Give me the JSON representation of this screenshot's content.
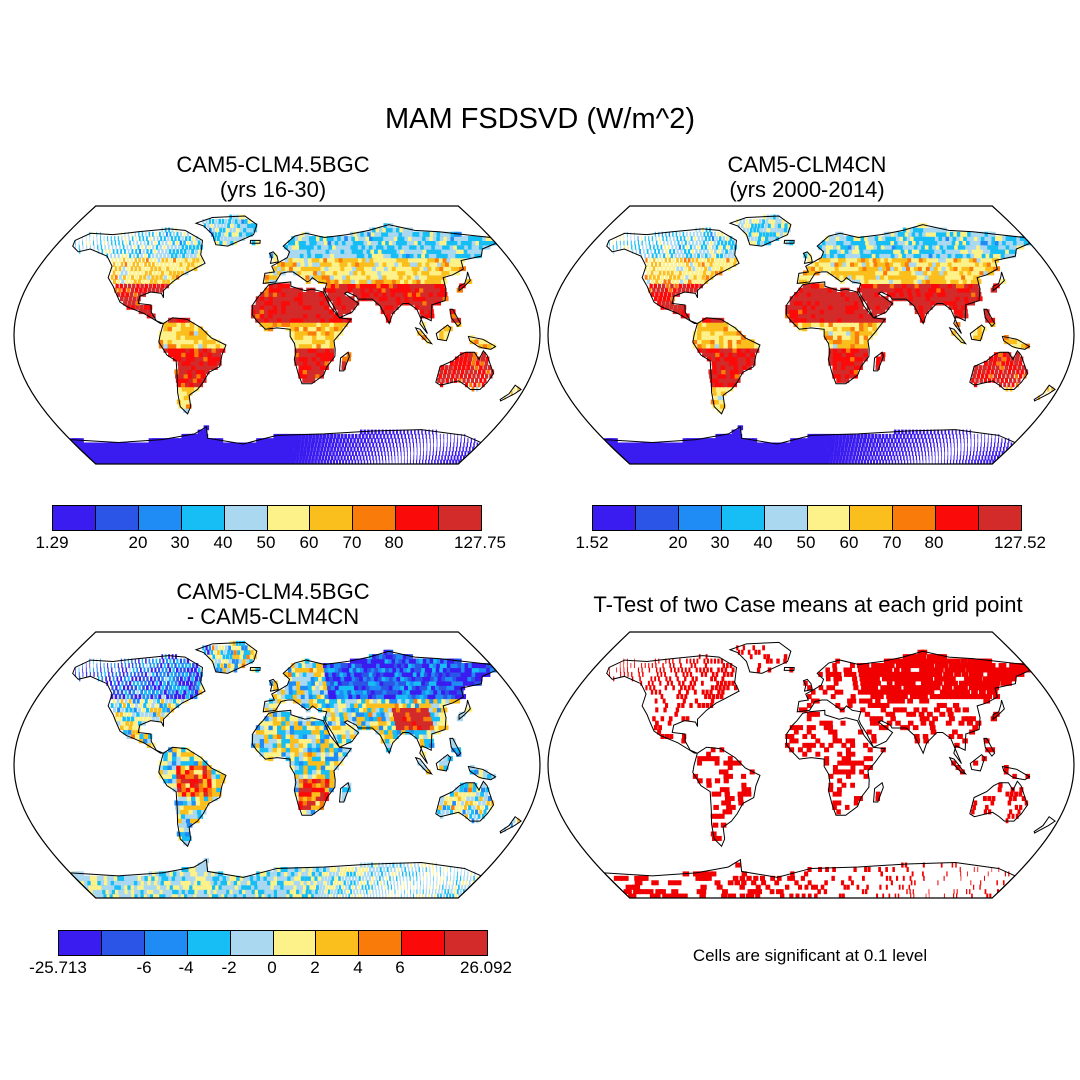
{
  "figure": {
    "title": "MAM FSDSVD (W/m^2)"
  },
  "panels": {
    "top_left": {
      "title": "CAM5-CLM4.5BGC\n(yrs 16-30)"
    },
    "top_right": {
      "title": "CAM5-CLM4CN\n (yrs 2000-2014)"
    },
    "bottom_left": {
      "title": "CAM5-CLM4.5BGC\n- CAM5-CLM4CN"
    },
    "bottom_right": {
      "title": "T-Test of two Case means at each grid point",
      "note": "Cells are significant at 0.1 level"
    }
  },
  "colors": {
    "scale": [
      "#3a1cf0",
      "#2a55e6",
      "#1f8cf5",
      "#17bdf5",
      "#a9d8f0",
      "#fdf28a",
      "#fbbf1d",
      "#f97b0a",
      "#fb0a0a",
      "#d32a2a"
    ],
    "significant": "#f00000",
    "land_outline": "#000000"
  },
  "colorbars": {
    "top_left": {
      "labels": [
        "1.29",
        "20",
        "30",
        "40",
        "50",
        "60",
        "70",
        "80",
        "127.75"
      ]
    },
    "top_right": {
      "labels": [
        "1.52",
        "20",
        "30",
        "40",
        "50",
        "60",
        "70",
        "80",
        "127.52"
      ]
    },
    "bottom_left": {
      "labels": [
        "-25.713",
        "-6",
        "-4",
        "-2",
        "0",
        "2",
        "4",
        "6",
        "26.092"
      ]
    }
  },
  "map": {
    "projection": "Robinson",
    "region": "global"
  }
}
